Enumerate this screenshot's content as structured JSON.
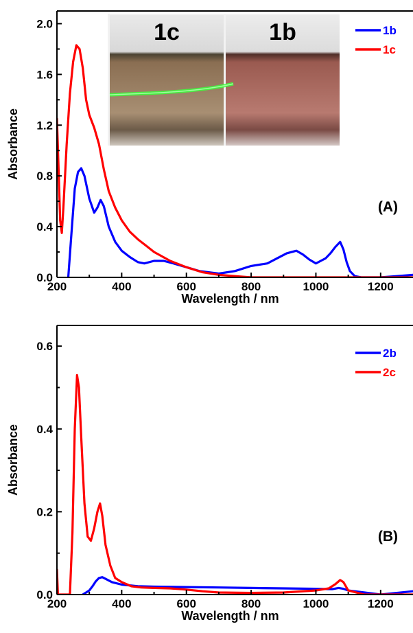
{
  "chart_data": [
    {
      "type": "line",
      "xlabel": "Wavelength / nm",
      "ylabel": "Absorbance",
      "xlim": [
        200,
        1300
      ],
      "ylim": [
        0,
        2.1
      ],
      "xticks": [
        200,
        400,
        600,
        800,
        1000,
        1200
      ],
      "yticks": [
        "0.0",
        "0.4",
        "0.8",
        "1.2",
        "1.6",
        "2.0"
      ],
      "ytick_values": [
        0.0,
        0.4,
        0.8,
        1.2,
        1.6,
        2.0
      ],
      "legend_position": "top-right",
      "panel_label": "(A)",
      "inset_photo_labels": [
        "1c",
        "1b"
      ],
      "series": [
        {
          "name": "1b",
          "color": "#0000ff",
          "x": [
            235,
            245,
            255,
            265,
            275,
            285,
            300,
            315,
            325,
            335,
            345,
            360,
            380,
            400,
            425,
            450,
            470,
            500,
            530,
            560,
            600,
            640,
            700,
            750,
            800,
            850,
            880,
            910,
            940,
            960,
            980,
            1000,
            1015,
            1030,
            1045,
            1060,
            1075,
            1085,
            1095,
            1105,
            1120,
            1140,
            1170,
            1200,
            1250,
            1300
          ],
          "y": [
            0.0,
            0.35,
            0.7,
            0.83,
            0.86,
            0.8,
            0.62,
            0.51,
            0.55,
            0.61,
            0.56,
            0.4,
            0.28,
            0.21,
            0.16,
            0.12,
            0.11,
            0.13,
            0.13,
            0.11,
            0.08,
            0.05,
            0.03,
            0.05,
            0.09,
            0.11,
            0.15,
            0.19,
            0.21,
            0.18,
            0.14,
            0.11,
            0.13,
            0.15,
            0.19,
            0.24,
            0.28,
            0.22,
            0.12,
            0.05,
            0.01,
            0.0,
            0.0,
            0.0,
            0.01,
            0.02
          ]
        },
        {
          "name": "1c",
          "color": "#ff0000",
          "x": [
            200,
            205,
            210,
            215,
            220,
            230,
            240,
            250,
            260,
            270,
            280,
            290,
            300,
            315,
            330,
            345,
            360,
            380,
            400,
            425,
            450,
            475,
            500,
            550,
            600,
            650,
            700,
            750,
            800,
            850,
            900,
            950,
            1000,
            1050,
            1100,
            1150,
            1200,
            1250,
            1300
          ],
          "y": [
            1.25,
            0.85,
            0.45,
            0.35,
            0.55,
            1.05,
            1.45,
            1.7,
            1.83,
            1.8,
            1.65,
            1.4,
            1.28,
            1.18,
            1.05,
            0.85,
            0.68,
            0.55,
            0.45,
            0.36,
            0.3,
            0.25,
            0.2,
            0.13,
            0.08,
            0.04,
            0.02,
            0.01,
            0.0,
            0.0,
            0.0,
            0.0,
            0.0,
            0.0,
            0.0,
            0.0,
            0.0,
            0.0,
            0.0
          ]
        }
      ]
    },
    {
      "type": "line",
      "xlabel": "Wavelength / nm",
      "ylabel": "Absorbance",
      "xlim": [
        200,
        1300
      ],
      "ylim": [
        0,
        0.65
      ],
      "xticks": [
        200,
        400,
        600,
        800,
        1000,
        1200
      ],
      "yticks": [
        "0.0",
        "0.2",
        "0.4",
        "0.6"
      ],
      "ytick_values": [
        0.0,
        0.2,
        0.4,
        0.6
      ],
      "legend_position": "top-right",
      "panel_label": "(B)",
      "series": [
        {
          "name": "2b",
          "color": "#0000ff",
          "x": [
            280,
            290,
            300,
            310,
            320,
            330,
            340,
            350,
            370,
            400,
            450,
            500,
            600,
            700,
            800,
            900,
            1000,
            1050,
            1070,
            1085,
            1100,
            1150,
            1200,
            1250,
            1300
          ],
          "y": [
            0.0,
            0.005,
            0.01,
            0.02,
            0.032,
            0.04,
            0.042,
            0.038,
            0.03,
            0.024,
            0.02,
            0.019,
            0.018,
            0.017,
            0.016,
            0.015,
            0.014,
            0.013,
            0.016,
            0.014,
            0.01,
            0.005,
            0.0,
            0.004,
            0.008
          ]
        },
        {
          "name": "2c",
          "color": "#ff0000",
          "x": [
            200,
            203,
            208,
            240,
            248,
            255,
            262,
            268,
            275,
            285,
            295,
            305,
            315,
            325,
            333,
            340,
            350,
            365,
            380,
            400,
            430,
            460,
            500,
            550,
            600,
            650,
            700,
            800,
            900,
            1000,
            1040,
            1060,
            1075,
            1085,
            1100,
            1150,
            1200,
            1250,
            1300
          ],
          "y": [
            0.06,
            0.0,
            0.0,
            0.0,
            0.15,
            0.4,
            0.53,
            0.5,
            0.38,
            0.22,
            0.14,
            0.13,
            0.16,
            0.2,
            0.22,
            0.19,
            0.12,
            0.07,
            0.04,
            0.03,
            0.02,
            0.017,
            0.016,
            0.015,
            0.012,
            0.008,
            0.005,
            0.004,
            0.005,
            0.01,
            0.015,
            0.025,
            0.035,
            0.03,
            0.01,
            0.0,
            0.0,
            0.0,
            0.0
          ]
        }
      ]
    }
  ]
}
